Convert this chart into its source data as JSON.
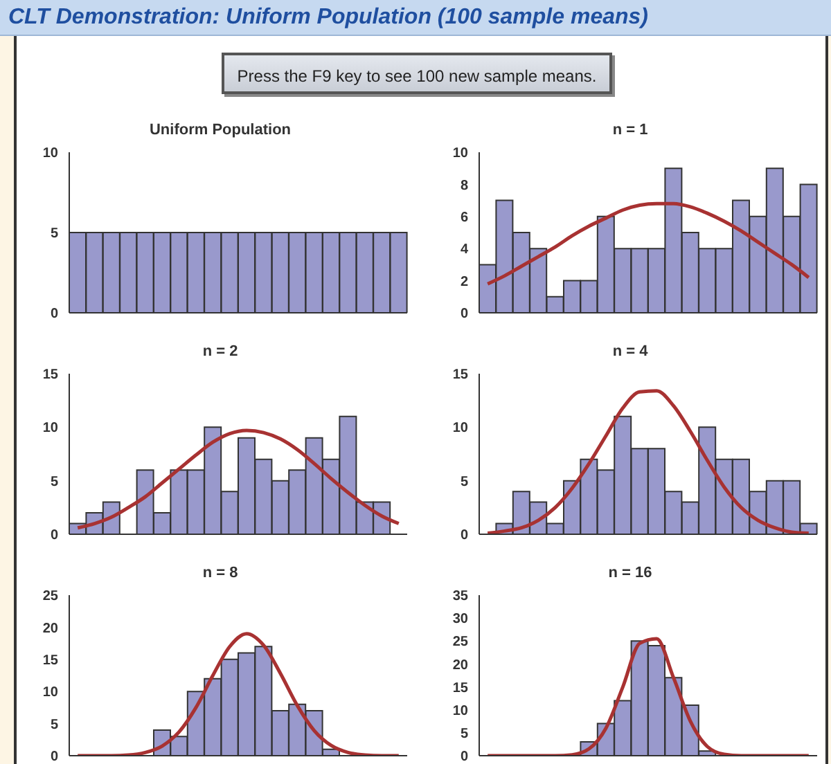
{
  "chart_data": [
    {
      "type": "other",
      "title": "CLT Demonstration: Uniform Population (100 sample means)",
      "annotations": [
        "Press the F9 key to see 100 new sample means."
      ]
    },
    {
      "type": "bar",
      "title": "Uniform Population",
      "categories": [
        null,
        null,
        null,
        null,
        null,
        null,
        null,
        null,
        null,
        null,
        null,
        null,
        null,
        null,
        null,
        null,
        null,
        null,
        null,
        null
      ],
      "ylim": [
        0,
        10
      ],
      "yticks": [
        0,
        5,
        10
      ],
      "series": [
        {
          "type": "bar",
          "color": "#9999cc",
          "values": [
            5,
            5,
            5,
            5,
            5,
            5,
            5,
            5,
            5,
            5,
            5,
            5,
            5,
            5,
            5,
            5,
            5,
            5,
            5,
            5
          ]
        }
      ]
    },
    {
      "type": "bar",
      "title": "n = 1",
      "categories": [
        null,
        null,
        null,
        null,
        null,
        null,
        null,
        null,
        null,
        null,
        null,
        null,
        null,
        null,
        null,
        null,
        null,
        null,
        null,
        null
      ],
      "ylim": [
        0,
        10
      ],
      "yticks": [
        0,
        2,
        4,
        6,
        8,
        10
      ],
      "series": [
        {
          "type": "bar",
          "color": "#9999cc",
          "values": [
            3,
            7,
            5,
            4,
            1,
            2,
            2,
            6,
            4,
            4,
            4,
            9,
            5,
            4,
            4,
            7,
            6,
            9,
            6,
            8
          ]
        },
        {
          "type": "line",
          "color": "#a83232",
          "values": [
            1.8,
            2.3,
            2.9,
            3.5,
            4.1,
            4.8,
            5.4,
            5.9,
            6.4,
            6.7,
            6.8,
            6.8,
            6.6,
            6.2,
            5.7,
            5.1,
            4.4,
            3.7,
            3.0,
            2.2
          ]
        }
      ]
    },
    {
      "type": "bar",
      "title": "n = 2",
      "categories": [
        null,
        null,
        null,
        null,
        null,
        null,
        null,
        null,
        null,
        null,
        null,
        null,
        null,
        null,
        null,
        null,
        null,
        null,
        null,
        null
      ],
      "ylim": [
        0,
        15
      ],
      "yticks": [
        0,
        5,
        10,
        15
      ],
      "series": [
        {
          "type": "bar",
          "color": "#9999cc",
          "values": [
            1,
            2,
            3,
            0,
            6,
            2,
            6,
            6,
            10,
            4,
            9,
            7,
            5,
            6,
            9,
            7,
            11,
            3,
            3,
            0
          ]
        },
        {
          "type": "line",
          "color": "#a83232",
          "values": [
            0.6,
            1,
            1.6,
            2.5,
            3.5,
            4.8,
            6.1,
            7.4,
            8.6,
            9.4,
            9.7,
            9.5,
            8.9,
            7.9,
            6.6,
            5.2,
            3.9,
            2.7,
            1.7,
            1
          ]
        }
      ]
    },
    {
      "type": "bar",
      "title": "n = 4",
      "categories": [
        null,
        null,
        null,
        null,
        null,
        null,
        null,
        null,
        null,
        null,
        null,
        null,
        null,
        null,
        null,
        null,
        null,
        null,
        null,
        null
      ],
      "ylim": [
        0,
        15
      ],
      "yticks": [
        0,
        5,
        10,
        15
      ],
      "series": [
        {
          "type": "bar",
          "color": "#9999cc",
          "values": [
            0,
            1,
            4,
            3,
            1,
            5,
            7,
            6,
            11,
            8,
            8,
            4,
            3,
            10,
            7,
            7,
            4,
            5,
            5,
            1
          ]
        },
        {
          "type": "line",
          "color": "#a83232",
          "values": [
            0.1,
            0.3,
            0.6,
            1.3,
            2.5,
            4.3,
            6.6,
            9.2,
            11.8,
            13.3,
            13.4,
            12,
            9.6,
            6.9,
            4.4,
            2.5,
            1.3,
            0.6,
            0.2,
            0.1
          ]
        }
      ]
    },
    {
      "type": "bar",
      "title": "n = 8",
      "categories": [
        null,
        null,
        null,
        null,
        null,
        null,
        null,
        null,
        null,
        null,
        null,
        null,
        null,
        null,
        null,
        null,
        null,
        null,
        null,
        null
      ],
      "ylim": [
        0,
        25
      ],
      "yticks": [
        0,
        5,
        10,
        15,
        20,
        25
      ],
      "series": [
        {
          "type": "bar",
          "color": "#9999cc",
          "values": [
            0,
            0,
            0,
            0,
            0,
            4,
            3,
            10,
            12,
            15,
            16,
            17,
            7,
            8,
            7,
            1,
            0,
            0,
            0,
            0
          ]
        },
        {
          "type": "line",
          "color": "#a83232",
          "values": [
            0,
            0,
            0,
            0.1,
            0.5,
            1.5,
            3.7,
            7.5,
            12.5,
            17,
            19,
            17.2,
            12.8,
            7.8,
            3.9,
            1.6,
            0.5,
            0.1,
            0,
            0
          ]
        }
      ]
    },
    {
      "type": "bar",
      "title": "n = 16",
      "categories": [
        null,
        null,
        null,
        null,
        null,
        null,
        null,
        null,
        null,
        null,
        null,
        null,
        null,
        null,
        null,
        null,
        null,
        null,
        null,
        null
      ],
      "ylim": [
        0,
        35
      ],
      "yticks": [
        0,
        5,
        10,
        15,
        20,
        25,
        30,
        35
      ],
      "series": [
        {
          "type": "bar",
          "color": "#9999cc",
          "values": [
            0,
            0,
            0,
            0,
            0,
            0,
            3,
            7,
            12,
            25,
            24,
            17,
            11,
            1,
            0,
            0,
            0,
            0,
            0,
            0
          ]
        },
        {
          "type": "line",
          "color": "#a83232",
          "values": [
            0,
            0,
            0,
            0,
            0,
            0.2,
            1.5,
            6,
            15,
            24.5,
            25.5,
            17,
            7.5,
            2,
            0.3,
            0,
            0,
            0,
            0,
            0
          ]
        }
      ]
    }
  ]
}
